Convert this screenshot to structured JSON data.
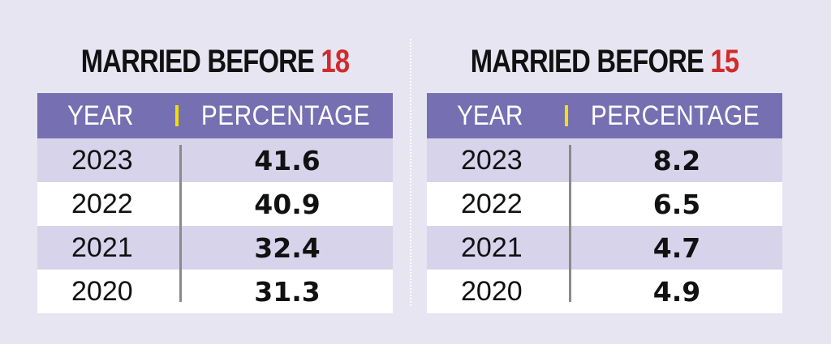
{
  "chart_data": [
    {
      "type": "table",
      "title_prefix": "MARRIED BEFORE",
      "title_number": "18",
      "columns": [
        "YEAR",
        "PERCENTAGE"
      ],
      "rows": [
        {
          "year": "2023",
          "value": "41.6"
        },
        {
          "year": "2022",
          "value": "40.9"
        },
        {
          "year": "2021",
          "value": "32.4"
        },
        {
          "year": "2020",
          "value": "31.3"
        }
      ]
    },
    {
      "type": "table",
      "title_prefix": "MARRIED BEFORE",
      "title_number": "15",
      "columns": [
        "YEAR",
        "PERCENTAGE"
      ],
      "rows": [
        {
          "year": "2023",
          "value": "8.2"
        },
        {
          "year": "2022",
          "value": "6.5"
        },
        {
          "year": "2021",
          "value": "4.7"
        },
        {
          "year": "2020",
          "value": "4.9"
        }
      ]
    }
  ],
  "colors": {
    "background": "#e7e5f1",
    "header": "#766fb1",
    "shaded_row": "#d7d3eb",
    "accent_number": "#d12b2b",
    "header_marker": "#f2e100"
  }
}
